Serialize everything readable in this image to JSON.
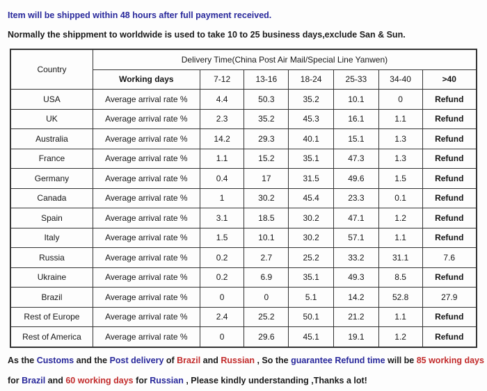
{
  "notices": {
    "top": "Item will be shipped within 48 hours after full payment received.",
    "sub": "Normally the shippment to worldwide is used to take 10 to 25 business days,exclude San & Sun."
  },
  "colors": {
    "navy": "#28289b",
    "red": "#c22b2b",
    "text": "#1a1a1a",
    "table_border": "#333333",
    "background": "#fdfdfd"
  },
  "table": {
    "corner_label": "Country",
    "delivery_header": "Delivery Time(China Post Air Mail/Special Line Yanwen)",
    "working_days_label": "Working days",
    "range_headers": [
      "7-12",
      "13-16",
      "18-24",
      "25-33",
      "34-40",
      ">40"
    ],
    "row_label": "Average arrival rate %",
    "rows": [
      {
        "country": "USA",
        "values": [
          "4.4",
          "50.3",
          "35.2",
          "10.1",
          "0",
          "Refund"
        ]
      },
      {
        "country": "UK",
        "values": [
          "2.3",
          "35.2",
          "45.3",
          "16.1",
          "1.1",
          "Refund"
        ]
      },
      {
        "country": "Australia",
        "values": [
          "14.2",
          "29.3",
          "40.1",
          "15.1",
          "1.3",
          "Refund"
        ]
      },
      {
        "country": "France",
        "values": [
          "1.1",
          "15.2",
          "35.1",
          "47.3",
          "1.3",
          "Refund"
        ]
      },
      {
        "country": "Germany",
        "values": [
          "0.4",
          "17",
          "31.5",
          "49.6",
          "1.5",
          "Refund"
        ]
      },
      {
        "country": "Canada",
        "values": [
          "1",
          "30.2",
          "45.4",
          "23.3",
          "0.1",
          "Refund"
        ]
      },
      {
        "country": "Spain",
        "values": [
          "3.1",
          "18.5",
          "30.2",
          "47.1",
          "1.2",
          "Refund"
        ]
      },
      {
        "country": "Italy",
        "values": [
          "1.5",
          "10.1",
          "30.2",
          "57.1",
          "1.1",
          "Refund"
        ]
      },
      {
        "country": "Russia",
        "values": [
          "0.2",
          "2.7",
          "25.2",
          "33.2",
          "31.1",
          "7.6"
        ]
      },
      {
        "country": "Ukraine",
        "values": [
          "0.2",
          "6.9",
          "35.1",
          "49.3",
          "8.5",
          "Refund"
        ]
      },
      {
        "country": "Brazil",
        "values": [
          "0",
          "0",
          "5.1",
          "14.2",
          "52.8",
          "27.9"
        ]
      },
      {
        "country": "Rest of Europe",
        "values": [
          "2.4",
          "25.2",
          "50.1",
          "21.2",
          "1.1",
          "Refund"
        ]
      },
      {
        "country": "Rest of America",
        "values": [
          "0",
          "29.6",
          "45.1",
          "19.1",
          "1.2",
          "Refund"
        ]
      }
    ]
  },
  "footer": {
    "line1": [
      {
        "text": "As the ",
        "color": "black"
      },
      {
        "text": "Customs",
        "color": "navy"
      },
      {
        "text": " and the ",
        "color": "black"
      },
      {
        "text": "Post delivery",
        "color": "navy"
      },
      {
        "text": " of ",
        "color": "black"
      },
      {
        "text": "Brazil",
        "color": "red"
      },
      {
        "text": " and ",
        "color": "black"
      },
      {
        "text": "Russian",
        "color": "red"
      },
      {
        "text": " , So the ",
        "color": "black"
      },
      {
        "text": "guarantee Refund time",
        "color": "navy"
      },
      {
        "text": " will be ",
        "color": "black"
      },
      {
        "text": "85 working days",
        "color": "red"
      }
    ],
    "line2": [
      {
        "text": "for ",
        "color": "black"
      },
      {
        "text": "Brazil",
        "color": "navy"
      },
      {
        "text": " and ",
        "color": "black"
      },
      {
        "text": "60 working days",
        "color": "red"
      },
      {
        "text": " for ",
        "color": "black"
      },
      {
        "text": "Russian",
        "color": "navy"
      },
      {
        "text": " , Please kindly understanding ,Thanks a lot!",
        "color": "black"
      }
    ]
  }
}
